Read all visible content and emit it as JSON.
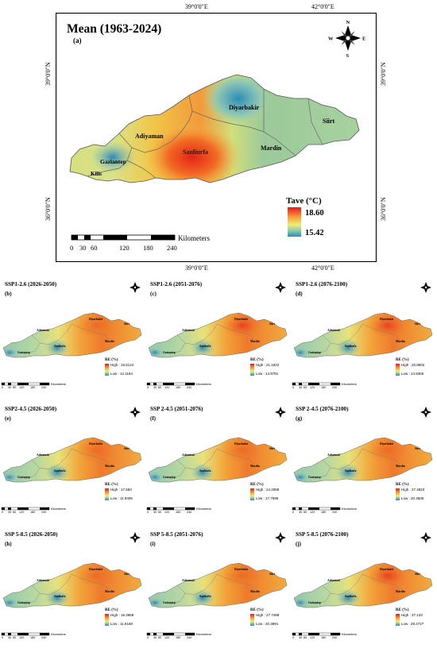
{
  "main": {
    "title": "Mean (1963-2024)",
    "label": "(a)",
    "coords": {
      "top_left": "39°0'0\"E",
      "top_right": "42°0'0\"E",
      "bottom_left": "39°0'0\"E",
      "bottom_right": "42°0'0\"E",
      "left_top": "39°0'0\"N",
      "left_bottom": "36°0'0\"N",
      "right_top": "39°0'0\"N",
      "right_bottom": "36°0'0\"N"
    },
    "legend": {
      "title": "Tave (°C)",
      "high": "18.60",
      "low": "15.42"
    },
    "scalebar": {
      "ticks": [
        "0",
        "30",
        "60",
        "120",
        "180",
        "240"
      ],
      "unit": "Kilometers"
    },
    "compass": {
      "n": "N",
      "s": "S",
      "e": "E",
      "w": "W"
    },
    "provinces": [
      "Diyarbakir",
      "Siirt",
      "Adiyaman",
      "Sanliurfa",
      "Mardin",
      "Gaziantep",
      "Kilis"
    ]
  },
  "panels": [
    {
      "title": "SSP1-2.6 (2026-2050)",
      "label": "(b)",
      "legend_title": "RE (%)",
      "high": "High : 16.6124",
      "low": "Low : 12.1164",
      "colors": [
        "#3fa0c8",
        "#ecd24a",
        "#e8401c"
      ]
    },
    {
      "title": "SSP1-2.6 (2051-2076)",
      "label": "(c)",
      "legend_title": "RE (%)",
      "high": "High : 21.1822",
      "low": "Low : 14.9781",
      "colors": [
        "#3fa0c8",
        "#ecd24a",
        "#e8401c"
      ]
    },
    {
      "title": "SSP1-2.6 (2076-2100)",
      "label": "(d)",
      "legend_title": "RE (%)",
      "high": "High : 20.8602",
      "low": "Low : 14.8365",
      "colors": [
        "#3fa0c8",
        "#ecd24a",
        "#e8401c"
      ]
    },
    {
      "title": "SSP2-4.5 (2026-2050)",
      "label": "(e)",
      "legend_title": "RE (%)",
      "high": "High : 17.583",
      "low": "Low : 11.9405",
      "colors": [
        "#3fa0c8",
        "#ecd24a",
        "#e8401c"
      ]
    },
    {
      "title": "SSP 2-4.5 (2051-2076)",
      "label": "(f)",
      "legend_title": "RE (%)",
      "high": "High : 24.2068",
      "low": "Low : 17.7596",
      "colors": [
        "#3fa0c8",
        "#ecd24a",
        "#e8401c"
      ]
    },
    {
      "title": "SSP 2-4.5 (2076-2100)",
      "label": "(g)",
      "legend_title": "RE (%)",
      "high": "High : 27.4823",
      "low": "Low : 20.3605",
      "colors": [
        "#3fa0c8",
        "#ecd24a",
        "#e8401c"
      ]
    },
    {
      "title": "SSP 5-8.5 (2026-2050)",
      "label": "(h)",
      "legend_title": "RE (%)",
      "high": "High : 16.3968",
      "low": "Low : 11.5168",
      "colors": [
        "#3fa0c8",
        "#ecd24a",
        "#e8401c"
      ]
    },
    {
      "title": "SSP 5-8.5 (2051-2076)",
      "label": "(i)",
      "legend_title": "RE (%)",
      "high": "High : 27.7488",
      "low": "Low : 20.3891",
      "colors": [
        "#3fa0c8",
        "#ecd24a",
        "#e8401c"
      ]
    },
    {
      "title": "SSP 5-8.5 (2076-2100)",
      "label": "(j)",
      "legend_title": "RE (%)",
      "high": "High : 37.133",
      "low": "Low : 28.4727",
      "colors": [
        "#3fa0c8",
        "#ecd24a",
        "#e8401c"
      ]
    }
  ],
  "small_scalebar": {
    "ticks": [
      "0",
      "30",
      "60",
      "120",
      "180",
      "240"
    ],
    "unit": "Kilometers"
  },
  "small_provinces": [
    "Diyarbakir",
    "Siirt",
    "Adiyaman",
    "Sanliurfa",
    "Mardin",
    "Gaziantep"
  ]
}
